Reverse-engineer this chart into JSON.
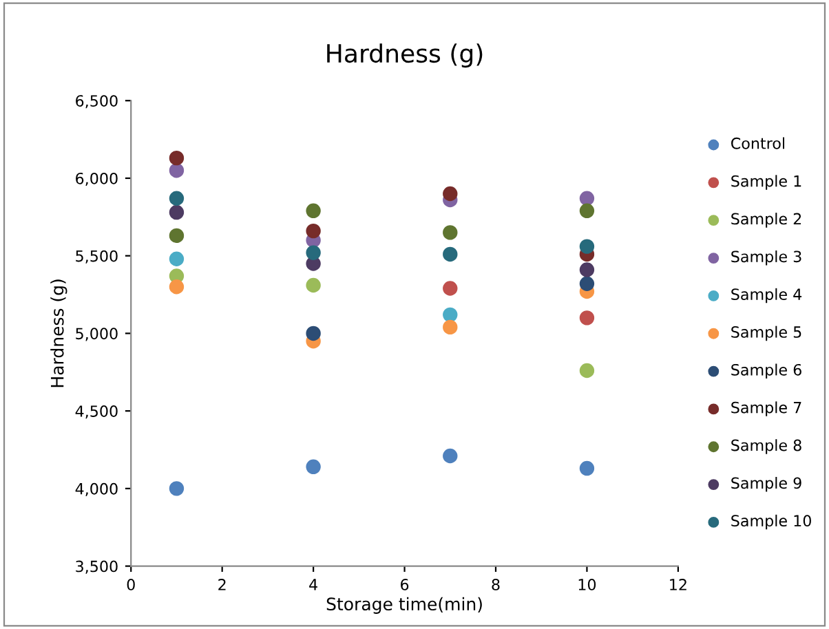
{
  "chart_data": {
    "type": "scatter",
    "title": "Hardness (g)",
    "xlabel": "Storage time(min)",
    "ylabel": "Hardness (g)",
    "x": [
      1,
      4,
      7,
      10
    ],
    "xlim": [
      0,
      12
    ],
    "xticks": [
      0,
      2,
      4,
      6,
      8,
      10,
      12
    ],
    "ylim": [
      3500,
      6500
    ],
    "yticks": [
      {
        "value": 3500,
        "label": "3,500"
      },
      {
        "value": 4000,
        "label": "4,000"
      },
      {
        "value": 4500,
        "label": "4,500"
      },
      {
        "value": 5000,
        "label": "5,000"
      },
      {
        "value": 5500,
        "label": "5,500"
      },
      {
        "value": 6000,
        "label": "6,000"
      },
      {
        "value": 6500,
        "label": "6,500"
      }
    ],
    "grid": false,
    "legend": "right",
    "marker": "circle",
    "series": [
      {
        "name": "Control",
        "color": "#4f81bd",
        "values": [
          4000,
          4140,
          4210,
          4130
        ]
      },
      {
        "name": "Sample 1",
        "color": "#c0504d",
        "values": [
          null,
          null,
          5290,
          5100
        ]
      },
      {
        "name": "Sample 2",
        "color": "#9bbb59",
        "values": [
          5370,
          5310,
          null,
          4760
        ]
      },
      {
        "name": "Sample 3",
        "color": "#8064a2",
        "values": [
          6050,
          5600,
          5860,
          5870
        ]
      },
      {
        "name": "Sample 4",
        "color": "#4bacc6",
        "values": [
          5480,
          null,
          5120,
          null
        ]
      },
      {
        "name": "Sample 5",
        "color": "#f79646",
        "values": [
          5300,
          4950,
          5040,
          5270
        ]
      },
      {
        "name": "Sample 6",
        "color": "#2c4d75",
        "values": [
          null,
          5000,
          null,
          5320
        ]
      },
      {
        "name": "Sample 7",
        "color": "#772c2a",
        "values": [
          6130,
          5660,
          5900,
          5510
        ]
      },
      {
        "name": "Sample 8",
        "color": "#5f7530",
        "values": [
          5630,
          5790,
          5650,
          5790
        ]
      },
      {
        "name": "Sample 9",
        "color": "#4d3b62",
        "values": [
          5780,
          5450,
          null,
          5410
        ]
      },
      {
        "name": "Sample 10",
        "color": "#276a7c",
        "values": [
          5870,
          5520,
          5510,
          5560
        ]
      }
    ]
  }
}
